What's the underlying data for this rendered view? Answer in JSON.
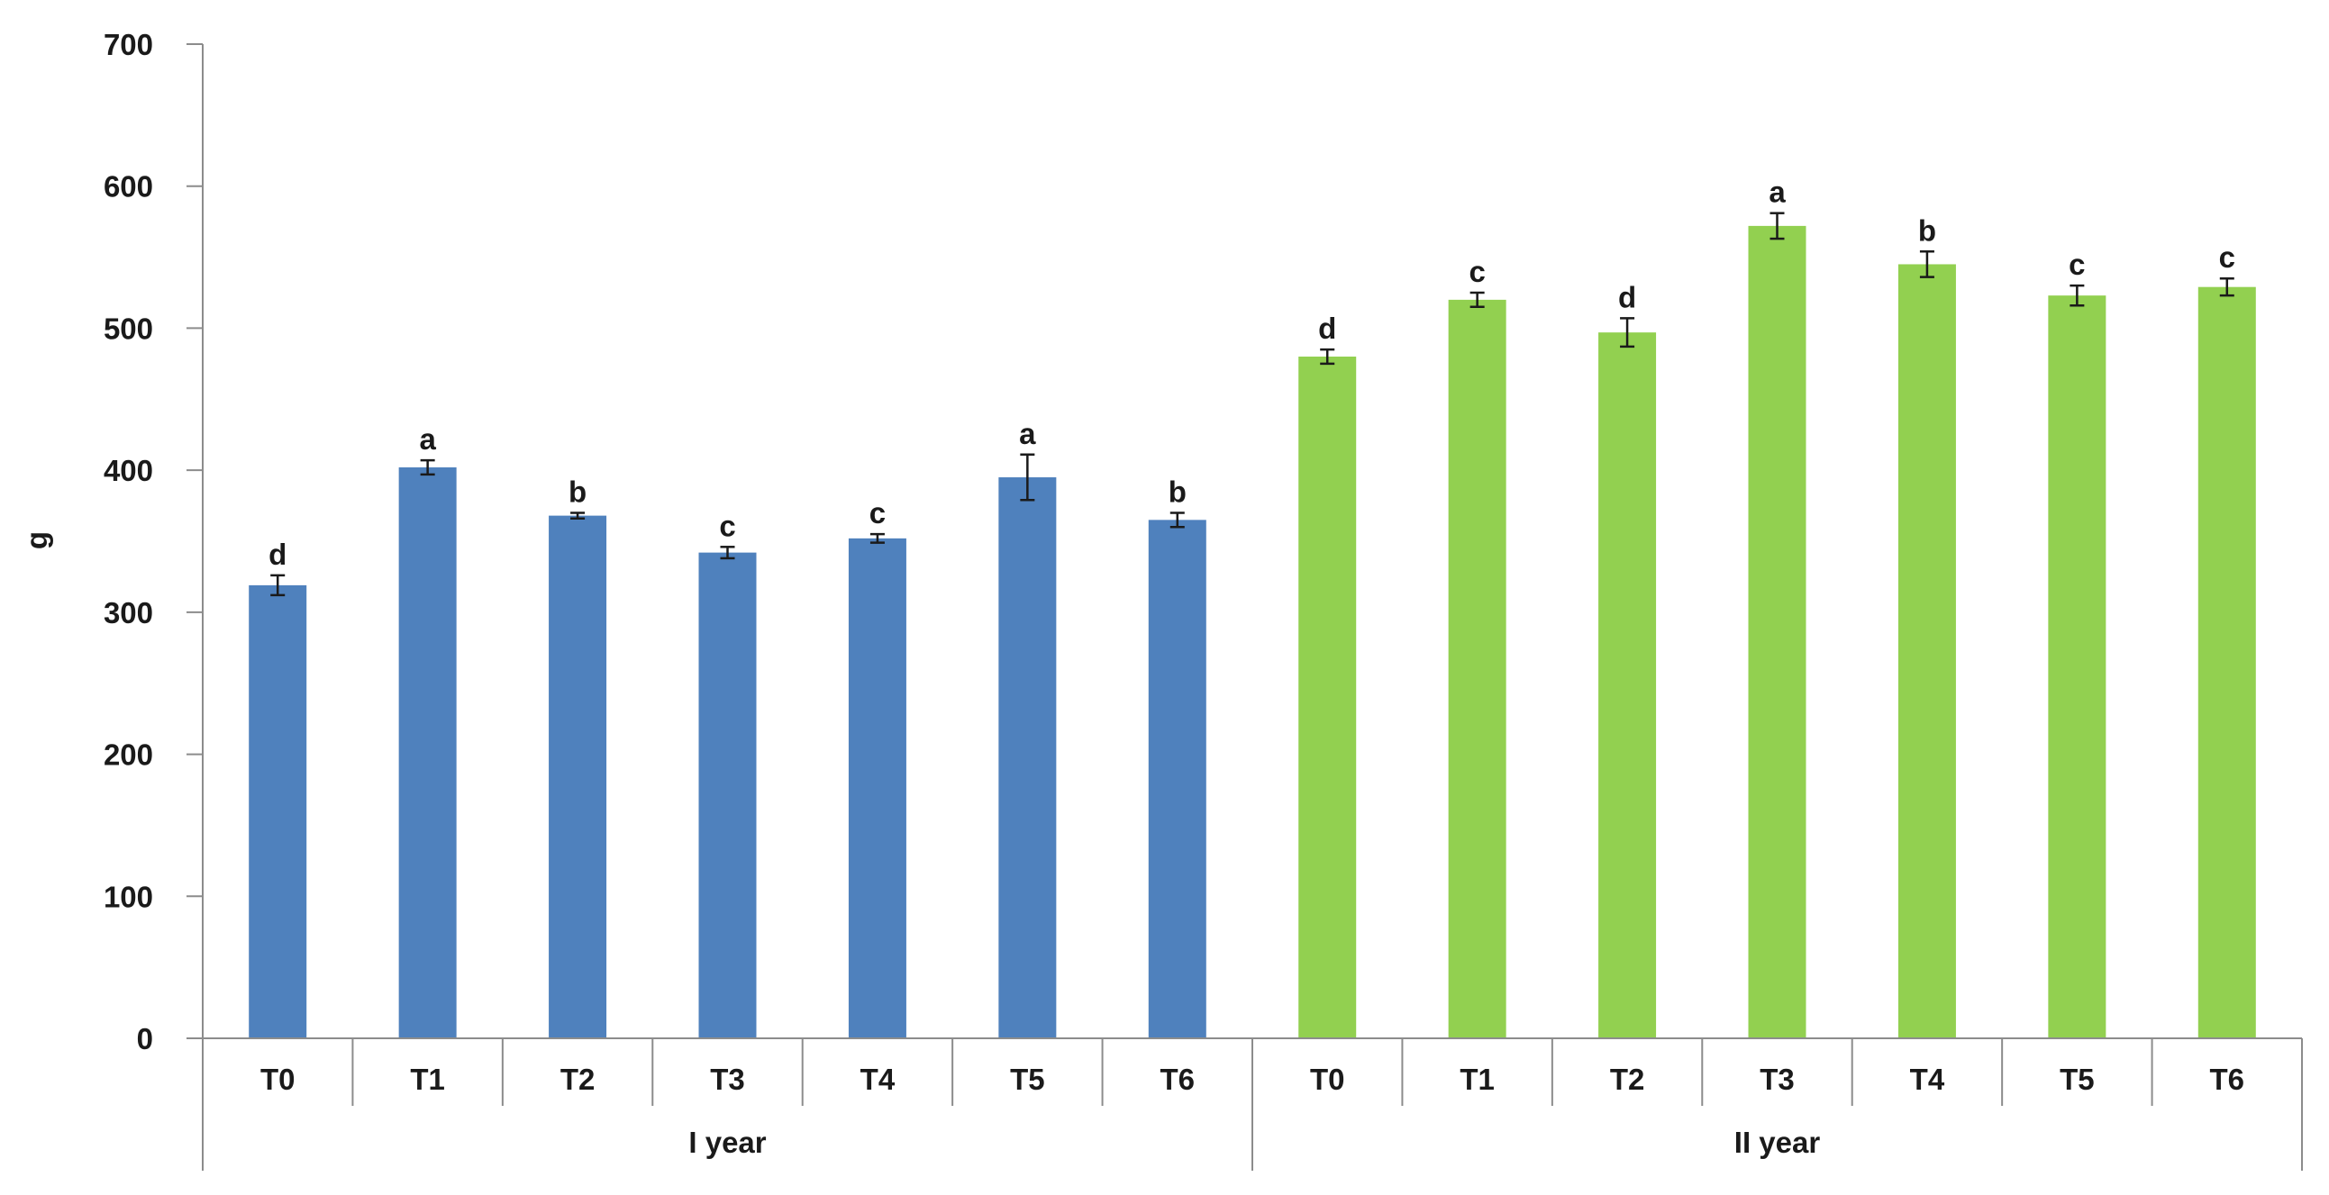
{
  "chart_data": {
    "type": "bar",
    "title": "",
    "xlabel": "",
    "ylabel": "g",
    "ylim": [
      0,
      700
    ],
    "yticks": [
      0,
      100,
      200,
      300,
      400,
      500,
      600,
      700
    ],
    "grid": false,
    "legend": "none",
    "groups": [
      {
        "label": "I year",
        "color": "#4f81bd",
        "categories": [
          "T0",
          "T1",
          "T2",
          "T3",
          "T4",
          "T5",
          "T6"
        ],
        "values": [
          319,
          402,
          368,
          342,
          352,
          395,
          365
        ],
        "errors": [
          7,
          5,
          2,
          4,
          3,
          16,
          5
        ],
        "significance": [
          "d",
          "a",
          "b",
          "c",
          "c",
          "a",
          "b"
        ]
      },
      {
        "label": "II year",
        "color": "#92d050",
        "categories": [
          "T0",
          "T1",
          "T2",
          "T3",
          "T4",
          "T5",
          "T6"
        ],
        "values": [
          480,
          520,
          497,
          572,
          545,
          523,
          529
        ],
        "errors": [
          5,
          5,
          10,
          9,
          9,
          7,
          6
        ],
        "significance": [
          "d",
          "c",
          "d",
          "a",
          "b",
          "c",
          "c"
        ]
      }
    ]
  }
}
